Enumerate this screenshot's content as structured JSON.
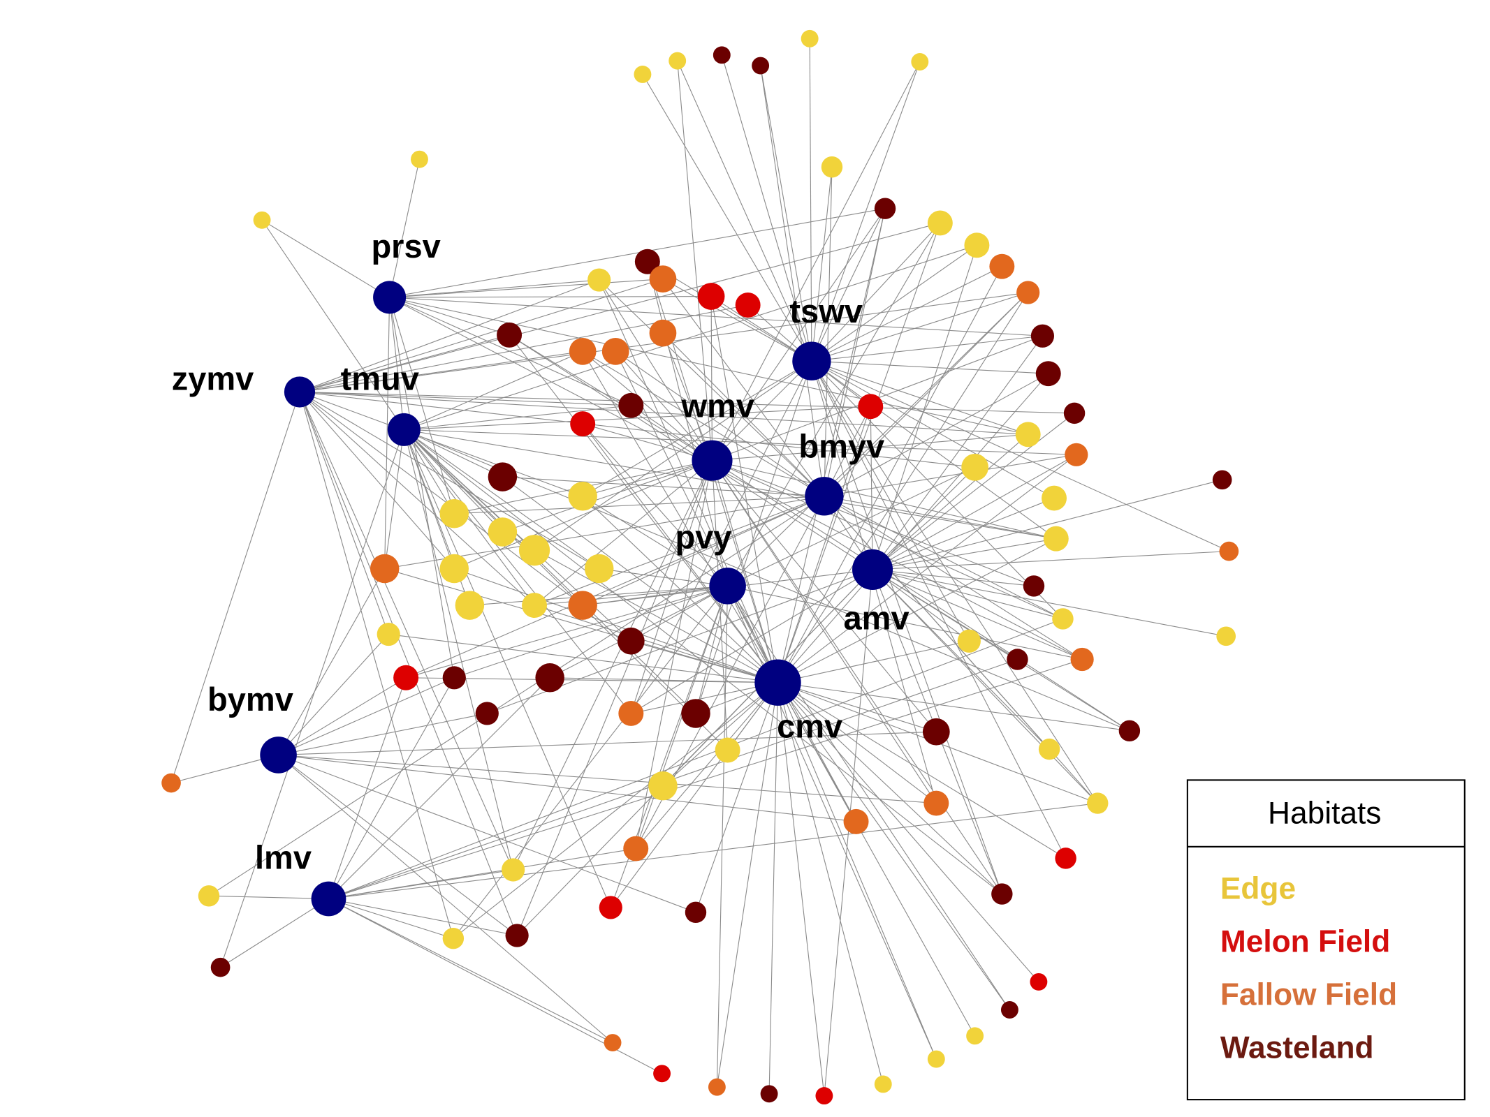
{
  "virus_nodes": [
    {
      "label": "prsv"
    },
    {
      "label": "zymv"
    },
    {
      "label": "tmuv"
    },
    {
      "label": "tswv"
    },
    {
      "label": "wmv"
    },
    {
      "label": "bmyv"
    },
    {
      "label": "amv"
    },
    {
      "label": "pvy"
    },
    {
      "label": "cmv"
    },
    {
      "label": "bymv"
    },
    {
      "label": "lmv"
    }
  ],
  "legend": {
    "title": "Habitats",
    "items": [
      {
        "label": "Edge",
        "color": "#e8c53a"
      },
      {
        "label": "Melon Field",
        "color": "#d40e0e"
      },
      {
        "label": "Fallow Field",
        "color": "#d6703a"
      },
      {
        "label": "Wasteland",
        "color": "#6b1a10"
      }
    ]
  }
}
